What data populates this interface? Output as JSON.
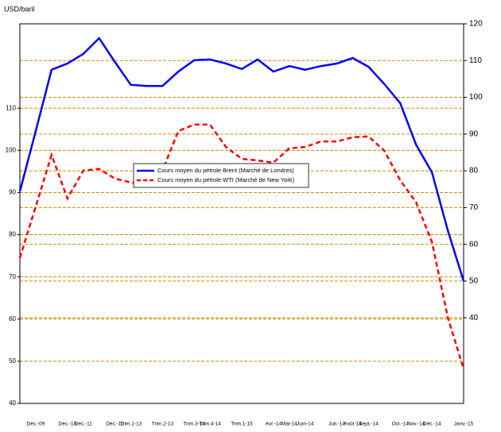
{
  "chart_data": {
    "type": "line",
    "ylabel": "USD/baril",
    "categories": [
      null,
      "Déc.-09",
      null,
      "Déc.-10",
      "Déc.-11",
      null,
      "Déc.-12",
      "Trim.1-13",
      null,
      "Trim.2-13",
      null,
      "Trim.3-14",
      "Trim.4-14",
      null,
      "Trim.1-15",
      null,
      "Avr.-14",
      "Mai-14",
      "Juin-14",
      null,
      "Juil.-14",
      "Août-14",
      "Sept.-14",
      null,
      "Oct.-14",
      "Nov.-14",
      "Déc.-14",
      null,
      "Janv.-15"
    ],
    "series": [
      {
        "name": "Cours moyen du pétrole Brent (Marché de Londres)",
        "color": "#0000ff",
        "linestyle": "solid",
        "axis": "y2",
        "values": [
          74.4,
          90.8,
          107.5,
          109.2,
          111.8,
          116.1,
          109.6,
          103.4,
          103.1,
          103.1,
          107.0,
          110.1,
          110.3,
          109.2,
          107.7,
          110.3,
          107.0,
          108.5,
          107.5,
          108.5,
          109.2,
          110.7,
          108.3,
          103.6,
          98.4,
          87.1,
          79.6,
          63.8,
          50.0
        ]
      },
      {
        "name": "Cours moyen du pétrole WTI (Marché de New York)",
        "color": "#ff0000",
        "linestyle": "dashed",
        "values": [
          74.5,
          86.7,
          98.9,
          88.6,
          95.2,
          95.6,
          93.3,
          92.4,
          92.0,
          95.2,
          104.6,
          106.1,
          106.1,
          100.8,
          98.0,
          97.6,
          97.1,
          100.5,
          100.8,
          102.1,
          102.1,
          103.1,
          103.3,
          99.9,
          92.9,
          87.7,
          78.3,
          60.4,
          48.2
        ]
      }
    ],
    "ylim": [
      40,
      130
    ],
    "yticks": [
      40,
      50,
      60,
      70,
      80,
      90,
      100,
      110
    ],
    "y2lim": [
      16.7,
      120
    ],
    "y2ticks": [
      40,
      50,
      60,
      70,
      80,
      90,
      100,
      110,
      120
    ],
    "grid": true,
    "grid_color": "#d08a00",
    "legend": "center"
  }
}
